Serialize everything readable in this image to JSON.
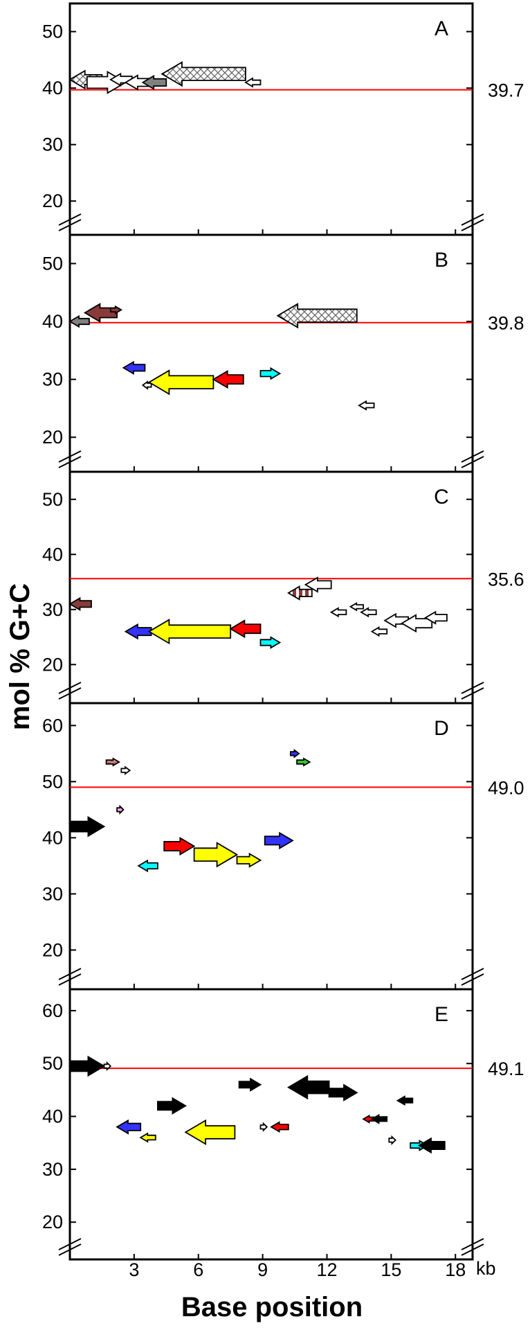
{
  "chart_data": {
    "type": "gene-map",
    "ylabel": "mol % G+C",
    "xlabel": "Base position",
    "x_unit": "kb",
    "x_ticks": [
      3,
      6,
      9,
      12,
      15,
      18
    ],
    "xlim": [
      0,
      18.8
    ],
    "colors": {
      "reference_line": "#ff0000",
      "white": "#ffffff",
      "gray": "#808080",
      "brown": "#8b3a3a",
      "blue": "#3333ff",
      "yellow": "#ffff00",
      "red": "#ff0000",
      "cyan": "#00ffff",
      "green": "#33cc33",
      "pink": "#f5a0f0",
      "black": "#000000",
      "rosy": "#d9908a"
    },
    "panels": [
      {
        "label": "A",
        "reference_label": "39.7",
        "reference_value": 39.7,
        "ylim": [
          15,
          54
        ],
        "yticks": [
          20,
          30,
          40,
          50
        ],
        "genes": [
          {
            "start": 0,
            "end": 1.5,
            "gc": 41.5,
            "dir": "left",
            "fill": "crosshatch"
          },
          {
            "start": 0.8,
            "end": 2.6,
            "gc": 41,
            "dir": "right",
            "fill": "white"
          },
          {
            "start": 1.9,
            "end": 2.9,
            "gc": 41.5,
            "dir": "left",
            "fill": "white"
          },
          {
            "start": 2.6,
            "end": 3.8,
            "gc": 41,
            "dir": "left",
            "fill": "white"
          },
          {
            "start": 3.4,
            "end": 4.5,
            "gc": 41,
            "dir": "left",
            "fill": "gray"
          },
          {
            "start": 4.3,
            "end": 8.2,
            "gc": 42.5,
            "dir": "left",
            "fill": "crosshatch"
          },
          {
            "start": 8.2,
            "end": 8.9,
            "gc": 41,
            "dir": "left",
            "fill": "white"
          }
        ]
      },
      {
        "label": "B",
        "reference_label": "39.8",
        "reference_value": 39.8,
        "ylim": [
          15,
          54
        ],
        "yticks": [
          20,
          30,
          40,
          50
        ],
        "genes": [
          {
            "start": 0,
            "end": 0.9,
            "gc": 40,
            "dir": "left",
            "fill": "gray"
          },
          {
            "start": 0.7,
            "end": 2.2,
            "gc": 41.5,
            "dir": "left",
            "fill": "brown"
          },
          {
            "start": 1.9,
            "end": 2.4,
            "gc": 42,
            "dir": "right",
            "fill": "brown"
          },
          {
            "start": 9.7,
            "end": 13.4,
            "gc": 41,
            "dir": "left",
            "fill": "crosshatch"
          },
          {
            "start": 2.5,
            "end": 3.5,
            "gc": 32,
            "dir": "left",
            "fill": "blue"
          },
          {
            "start": 3.4,
            "end": 3.8,
            "gc": 29,
            "dir": "left",
            "fill": "white"
          },
          {
            "start": 3.7,
            "end": 6.7,
            "gc": 29.5,
            "dir": "left",
            "fill": "yellow"
          },
          {
            "start": 6.7,
            "end": 8.1,
            "gc": 30,
            "dir": "left",
            "fill": "red"
          },
          {
            "start": 8.9,
            "end": 9.8,
            "gc": 31,
            "dir": "right",
            "fill": "cyan"
          },
          {
            "start": 13.5,
            "end": 14.2,
            "gc": 25.5,
            "dir": "left",
            "fill": "white"
          }
        ]
      },
      {
        "label": "C",
        "reference_label": "35.6",
        "reference_value": 35.6,
        "ylim": [
          14,
          54
        ],
        "yticks": [
          20,
          30,
          40,
          50
        ],
        "genes": [
          {
            "start": 0,
            "end": 1.0,
            "gc": 31,
            "dir": "left",
            "fill": "brown"
          },
          {
            "start": 2.6,
            "end": 3.8,
            "gc": 26,
            "dir": "left",
            "fill": "blue"
          },
          {
            "start": 3.7,
            "end": 7.5,
            "gc": 26,
            "dir": "left",
            "fill": "yellow"
          },
          {
            "start": 7.5,
            "end": 8.9,
            "gc": 26.5,
            "dir": "left",
            "fill": "red"
          },
          {
            "start": 8.9,
            "end": 9.8,
            "gc": 24,
            "dir": "right",
            "fill": "cyan"
          },
          {
            "start": 10.2,
            "end": 11.3,
            "gc": 33,
            "dir": "left",
            "fill": "striped"
          },
          {
            "start": 11.0,
            "end": 12.2,
            "gc": 34.5,
            "dir": "left",
            "fill": "white"
          },
          {
            "start": 12.2,
            "end": 12.9,
            "gc": 29.5,
            "dir": "left",
            "fill": "white"
          },
          {
            "start": 13.1,
            "end": 13.7,
            "gc": 30.5,
            "dir": "left",
            "fill": "white"
          },
          {
            "start": 13.6,
            "end": 14.3,
            "gc": 29.5,
            "dir": "left",
            "fill": "white"
          },
          {
            "start": 14.1,
            "end": 14.8,
            "gc": 26,
            "dir": "left",
            "fill": "white"
          },
          {
            "start": 14.7,
            "end": 15.8,
            "gc": 28,
            "dir": "left",
            "fill": "white"
          },
          {
            "start": 15.5,
            "end": 16.9,
            "gc": 27.5,
            "dir": "left",
            "fill": "white"
          },
          {
            "start": 16.6,
            "end": 17.6,
            "gc": 28.5,
            "dir": "left",
            "fill": "white"
          }
        ]
      },
      {
        "label": "D",
        "reference_label": "49.0",
        "reference_value": 49.0,
        "ylim": [
          14,
          63
        ],
        "yticks": [
          20,
          30,
          40,
          50,
          60
        ],
        "genes": [
          {
            "start": 0,
            "end": 1.6,
            "gc": 42,
            "dir": "right",
            "fill": "black"
          },
          {
            "start": 1.7,
            "end": 2.3,
            "gc": 53.5,
            "dir": "right",
            "fill": "rosy"
          },
          {
            "start": 2.4,
            "end": 2.8,
            "gc": 52,
            "dir": "right",
            "fill": "white"
          },
          {
            "start": 2.2,
            "end": 2.5,
            "gc": 45,
            "dir": "right",
            "fill": "pink"
          },
          {
            "start": 3.2,
            "end": 4.1,
            "gc": 35,
            "dir": "left",
            "fill": "cyan"
          },
          {
            "start": 4.4,
            "end": 5.8,
            "gc": 38.5,
            "dir": "right",
            "fill": "red"
          },
          {
            "start": 5.8,
            "end": 7.8,
            "gc": 37,
            "dir": "right",
            "fill": "yellow"
          },
          {
            "start": 7.8,
            "end": 8.9,
            "gc": 36,
            "dir": "right",
            "fill": "yellow"
          },
          {
            "start": 9.1,
            "end": 10.4,
            "gc": 39.5,
            "dir": "right",
            "fill": "blue"
          },
          {
            "start": 10.3,
            "end": 10.7,
            "gc": 55,
            "dir": "right",
            "fill": "blue"
          },
          {
            "start": 10.6,
            "end": 11.2,
            "gc": 53.5,
            "dir": "right",
            "fill": "green"
          }
        ]
      },
      {
        "label": "E",
        "reference_label": "49.1",
        "reference_value": 49.1,
        "ylim": [
          14,
          63
        ],
        "yticks": [
          20,
          30,
          40,
          50,
          60
        ],
        "genes": [
          {
            "start": 0,
            "end": 1.6,
            "gc": 49.5,
            "dir": "right",
            "fill": "black"
          },
          {
            "start": 1.6,
            "end": 1.9,
            "gc": 49.5,
            "dir": "right",
            "fill": "white"
          },
          {
            "start": 2.2,
            "end": 3.3,
            "gc": 38,
            "dir": "left",
            "fill": "blue"
          },
          {
            "start": 3.3,
            "end": 4.0,
            "gc": 36,
            "dir": "left",
            "fill": "yellow"
          },
          {
            "start": 4.1,
            "end": 5.4,
            "gc": 42,
            "dir": "right",
            "fill": "black"
          },
          {
            "start": 5.4,
            "end": 7.7,
            "gc": 37,
            "dir": "left",
            "fill": "yellow"
          },
          {
            "start": 7.9,
            "end": 8.9,
            "gc": 46,
            "dir": "right",
            "fill": "black"
          },
          {
            "start": 8.9,
            "end": 9.2,
            "gc": 38,
            "dir": "right",
            "fill": "white"
          },
          {
            "start": 9.4,
            "end": 10.2,
            "gc": 38,
            "dir": "left",
            "fill": "red"
          },
          {
            "start": 10.2,
            "end": 12.1,
            "gc": 45.5,
            "dir": "left",
            "fill": "black"
          },
          {
            "start": 12.1,
            "end": 13.4,
            "gc": 44.5,
            "dir": "right",
            "fill": "black"
          },
          {
            "start": 13.7,
            "end": 14.2,
            "gc": 39.5,
            "dir": "left",
            "fill": "red"
          },
          {
            "start": 14.1,
            "end": 14.8,
            "gc": 39.5,
            "dir": "left",
            "fill": "black"
          },
          {
            "start": 15.3,
            "end": 16.0,
            "gc": 43,
            "dir": "left",
            "fill": "black"
          },
          {
            "start": 14.9,
            "end": 15.2,
            "gc": 35.5,
            "dir": "right",
            "fill": "white"
          },
          {
            "start": 15.9,
            "end": 16.7,
            "gc": 34.5,
            "dir": "right",
            "fill": "cyan"
          },
          {
            "start": 16.3,
            "end": 17.5,
            "gc": 34.5,
            "dir": "left",
            "fill": "black"
          }
        ]
      }
    ]
  }
}
